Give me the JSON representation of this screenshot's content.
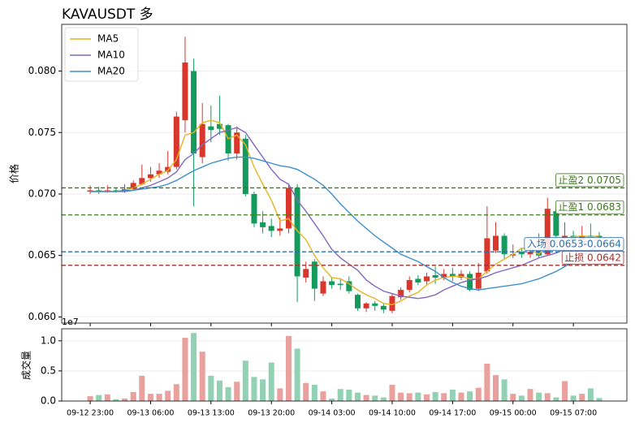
{
  "chart_data": [
    {
      "type": "candlestick",
      "title": "KAVAUSDT 多",
      "ylabel": "价格",
      "up_color": "#d9372c",
      "down_color": "#139a5c",
      "open": [
        0.0702,
        0.0703,
        0.0702,
        0.0703,
        0.0702,
        0.0704,
        0.0708,
        0.0713,
        0.0716,
        0.0718,
        0.0722,
        0.076,
        0.08,
        0.073,
        0.0755,
        0.0757,
        0.0756,
        0.0733,
        0.0745,
        0.07,
        0.0677,
        0.0674,
        0.067,
        0.0672,
        0.0705,
        0.0632,
        0.0645,
        0.0619,
        0.0629,
        0.0627,
        0.0629,
        0.0618,
        0.0607,
        0.0611,
        0.0609,
        0.0605,
        0.0616,
        0.0622,
        0.0631,
        0.0629,
        0.0634,
        0.0632,
        0.0635,
        0.0632,
        0.0635,
        0.0623,
        0.0637,
        0.0654,
        0.0666,
        0.065,
        0.0653,
        0.0651,
        0.0654,
        0.0651,
        0.0686,
        0.0664,
        0.0666,
        0.0663,
        0.0666,
        0.0666
      ],
      "high": [
        0.0707,
        0.0706,
        0.0707,
        0.0705,
        0.0708,
        0.0711,
        0.0724,
        0.0722,
        0.0725,
        0.0735,
        0.0767,
        0.0828,
        0.081,
        0.0774,
        0.0772,
        0.078,
        0.0757,
        0.0755,
        0.0748,
        0.0702,
        0.0686,
        0.068,
        0.0681,
        0.0708,
        0.0708,
        0.0645,
        0.0647,
        0.0633,
        0.0632,
        0.0631,
        0.0633,
        0.0619,
        0.0612,
        0.0613,
        0.0611,
        0.0619,
        0.0624,
        0.0633,
        0.0634,
        0.0636,
        0.0641,
        0.0639,
        0.064,
        0.0638,
        0.0637,
        0.0644,
        0.069,
        0.0677,
        0.0668,
        0.0659,
        0.0656,
        0.0657,
        0.0668,
        0.0697,
        0.0688,
        0.0677,
        0.067,
        0.0674,
        0.0676,
        0.0669
      ],
      "low": [
        0.07,
        0.07,
        0.0701,
        0.0701,
        0.0701,
        0.0703,
        0.0707,
        0.071,
        0.0713,
        0.0716,
        0.072,
        0.075,
        0.069,
        0.0725,
        0.0742,
        0.0748,
        0.0727,
        0.0728,
        0.0698,
        0.0673,
        0.0668,
        0.0665,
        0.0666,
        0.0668,
        0.0612,
        0.0628,
        0.0613,
        0.0617,
        0.0623,
        0.0622,
        0.0619,
        0.0605,
        0.0604,
        0.0605,
        0.0603,
        0.0603,
        0.0614,
        0.062,
        0.0626,
        0.0626,
        0.0627,
        0.063,
        0.0629,
        0.063,
        0.0621,
        0.0621,
        0.0635,
        0.0652,
        0.0647,
        0.0648,
        0.0648,
        0.0648,
        0.0648,
        0.065,
        0.066,
        0.066,
        0.0658,
        0.066,
        0.0661,
        0.0664
      ],
      "close": [
        0.0703,
        0.0702,
        0.0703,
        0.0702,
        0.0704,
        0.0709,
        0.0713,
        0.0716,
        0.0719,
        0.0722,
        0.0763,
        0.0807,
        0.0733,
        0.0757,
        0.0752,
        0.0753,
        0.0733,
        0.075,
        0.07,
        0.0676,
        0.0673,
        0.067,
        0.0672,
        0.0705,
        0.0633,
        0.0639,
        0.0623,
        0.0629,
        0.0626,
        0.0626,
        0.0621,
        0.0607,
        0.0611,
        0.0609,
        0.0606,
        0.0617,
        0.0622,
        0.063,
        0.0628,
        0.0633,
        0.0632,
        0.0635,
        0.0633,
        0.0635,
        0.0622,
        0.0636,
        0.0664,
        0.0666,
        0.0651,
        0.0651,
        0.0651,
        0.0653,
        0.065,
        0.0688,
        0.0666,
        0.0666,
        0.0662,
        0.0666,
        0.0665,
        0.0665
      ],
      "series": [
        {
          "name": "MA5",
          "color": "#e6b422",
          "values": [
            0.0702,
            0.0702,
            0.0702,
            0.0702,
            0.0703,
            0.0705,
            0.0708,
            0.0712,
            0.0716,
            0.0719,
            0.0728,
            0.0748,
            0.075,
            0.0758,
            0.076,
            0.0758,
            0.0745,
            0.0748,
            0.074,
            0.0722,
            0.0708,
            0.0695,
            0.0678,
            0.068,
            0.067,
            0.0663,
            0.065,
            0.064,
            0.0632,
            0.0631,
            0.0627,
            0.0622,
            0.0618,
            0.0615,
            0.0611,
            0.061,
            0.0613,
            0.0617,
            0.062,
            0.0626,
            0.063,
            0.0632,
            0.0633,
            0.0633,
            0.0631,
            0.0631,
            0.0637,
            0.0643,
            0.0647,
            0.0651,
            0.0656,
            0.0655,
            0.0651,
            0.0659,
            0.0662,
            0.0664,
            0.0665,
            0.0666,
            0.0665,
            0.0666
          ]
        },
        {
          "name": "MA10",
          "color": "#8467c0",
          "values": [
            0.0702,
            0.0702,
            0.0702,
            0.0702,
            0.0702,
            0.0703,
            0.0705,
            0.0707,
            0.071,
            0.0713,
            0.0718,
            0.0728,
            0.0733,
            0.074,
            0.0745,
            0.075,
            0.0752,
            0.0754,
            0.075,
            0.074,
            0.073,
            0.072,
            0.0712,
            0.0708,
            0.0695,
            0.0686,
            0.0676,
            0.0666,
            0.0655,
            0.0648,
            0.0643,
            0.0638,
            0.063,
            0.0625,
            0.0621,
            0.0619,
            0.0617,
            0.0616,
            0.0615,
            0.0616,
            0.0618,
            0.0622,
            0.0625,
            0.0628,
            0.063,
            0.0631,
            0.0633,
            0.0636,
            0.0638,
            0.064,
            0.0642,
            0.0645,
            0.0648,
            0.065,
            0.0652,
            0.0655,
            0.0658,
            0.0661,
            0.0662,
            0.0663
          ]
        },
        {
          "name": "MA20",
          "color": "#3f8fcc",
          "values": [
            0.0702,
            0.0702,
            0.0702,
            0.0702,
            0.0703,
            0.0703,
            0.0704,
            0.0705,
            0.0706,
            0.0708,
            0.0711,
            0.0715,
            0.0719,
            0.0722,
            0.0725,
            0.0727,
            0.0729,
            0.073,
            0.073,
            0.0729,
            0.0727,
            0.0725,
            0.0723,
            0.0722,
            0.072,
            0.0716,
            0.0712,
            0.0707,
            0.07,
            0.0692,
            0.0685,
            0.0678,
            0.0672,
            0.0666,
            0.0661,
            0.0656,
            0.0651,
            0.0648,
            0.0645,
            0.0641,
            0.0637,
            0.0632,
            0.0628,
            0.0625,
            0.0623,
            0.0622,
            0.0623,
            0.0624,
            0.0625,
            0.0626,
            0.0627,
            0.0629,
            0.0631,
            0.0634,
            0.0637,
            0.0641,
            0.0645,
            0.065,
            0.0654,
            0.066
          ]
        }
      ],
      "levels": [
        {
          "label": "止盈2 0.0705",
          "value": 0.0705,
          "color": "#3d7a1e"
        },
        {
          "label": "止盈1 0.0683",
          "value": 0.0683,
          "color": "#3d7a1e"
        },
        {
          "label": "入场 0.0653-0.0664",
          "value": 0.0653,
          "color": "#2f6fae"
        },
        {
          "label": "止损 0.0642",
          "value": 0.0642,
          "color": "#a3312d"
        }
      ],
      "ylim": [
        0.0595,
        0.0838
      ],
      "yticks": [
        {
          "value": 0.06,
          "label": "0.060"
        },
        {
          "value": 0.065,
          "label": "0.065"
        },
        {
          "value": 0.07,
          "label": "0.070"
        },
        {
          "value": 0.075,
          "label": "0.075"
        },
        {
          "value": 0.08,
          "label": "0.080"
        }
      ],
      "grid": true,
      "legend": "upper left"
    },
    {
      "type": "bar",
      "ylabel": "成交量",
      "offset_label": "1e7",
      "up_color": "#e8a19c",
      "down_color": "#92d1b4",
      "categories": [
        "09-12 23:00",
        null,
        null,
        null,
        null,
        null,
        null,
        "09-13 06:00",
        null,
        null,
        null,
        null,
        null,
        null,
        "09-13 13:00",
        null,
        null,
        null,
        null,
        null,
        null,
        "09-13 20:00",
        null,
        null,
        null,
        null,
        null,
        null,
        "09-14 03:00",
        null,
        null,
        null,
        null,
        null,
        null,
        "09-14 10:00",
        null,
        null,
        null,
        null,
        null,
        null,
        "09-14 17:00",
        null,
        null,
        null,
        null,
        null,
        null,
        "09-15 00:00",
        null,
        null,
        null,
        null,
        null,
        null,
        "09-15 07:00",
        null,
        null,
        null
      ],
      "values": [
        0.08,
        0.1,
        0.11,
        0.03,
        0.04,
        0.15,
        0.42,
        0.12,
        0.12,
        0.17,
        0.28,
        1.05,
        1.13,
        0.82,
        0.42,
        0.34,
        0.23,
        0.32,
        0.67,
        0.4,
        0.36,
        0.64,
        0.21,
        1.08,
        0.87,
        0.3,
        0.27,
        0.16,
        0.04,
        0.2,
        0.19,
        0.14,
        0.1,
        0.09,
        0.06,
        0.27,
        0.14,
        0.13,
        0.14,
        0.11,
        0.15,
        0.13,
        0.19,
        0.14,
        0.16,
        0.22,
        0.62,
        0.43,
        0.36,
        0.12,
        0.09,
        0.2,
        0.14,
        0.13,
        0.06,
        0.33,
        0.09,
        0.12,
        0.21,
        0.05
      ],
      "ylim": [
        0,
        1.2
      ],
      "yticks": [
        {
          "value": 0,
          "label": "0.0"
        },
        {
          "value": 0.5,
          "label": "0.5"
        },
        {
          "value": 1,
          "label": "1.0"
        }
      ],
      "grid": true
    }
  ]
}
